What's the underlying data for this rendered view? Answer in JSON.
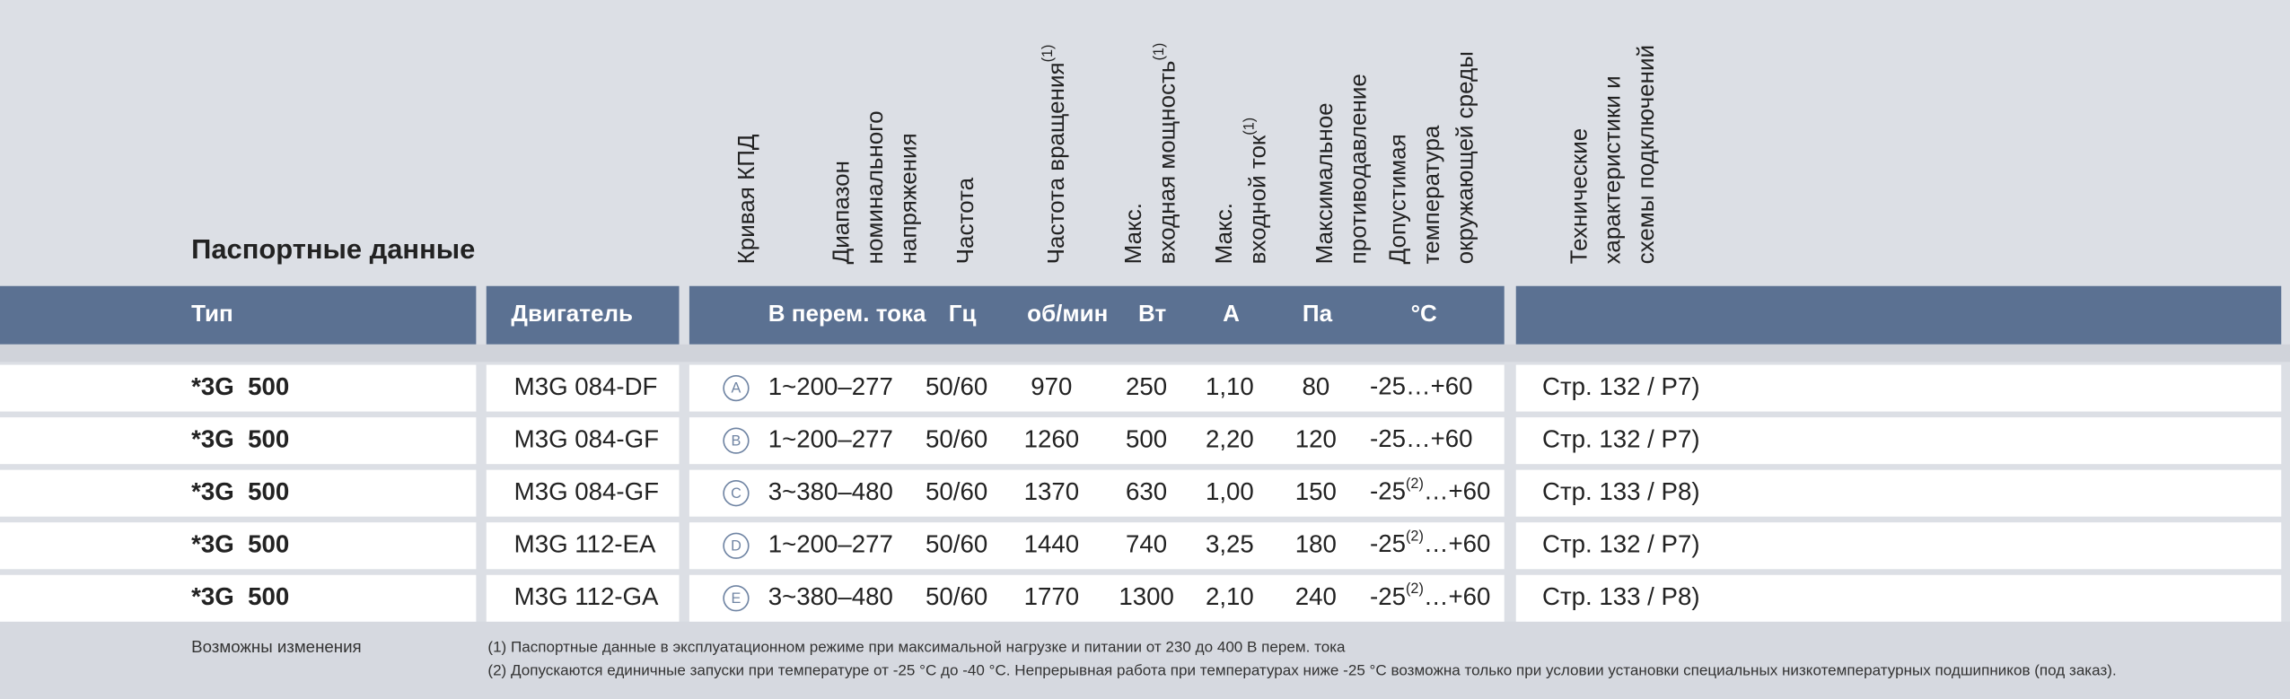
{
  "header": {
    "title": "Паспортные данные",
    "column_headers": [
      {
        "lines": [
          "Кривая КПД"
        ]
      },
      {
        "lines": [
          "Диапазон",
          "номинального",
          "напряжения"
        ]
      },
      {
        "lines": [
          "Частота"
        ]
      },
      {
        "lines": [
          "Частота вращения"
        ],
        "note": "(1)"
      },
      {
        "lines": [
          "Макс.",
          "входная мощность"
        ],
        "note": "(1)"
      },
      {
        "lines": [
          "Макс.",
          "входной ток"
        ],
        "note": "(1)"
      },
      {
        "lines": [
          "Максимальное",
          "противодавление"
        ]
      },
      {
        "lines": [
          "Допустимая",
          "температура",
          "окружающей среды"
        ]
      },
      {
        "lines": [
          "Технические",
          "характеристики и",
          "схемы подключений"
        ]
      }
    ]
  },
  "table": {
    "units": [
      "Тип",
      "Двигатель",
      "В перем. тока",
      "Гц",
      "об/мин",
      "Вт",
      "A",
      "Па",
      "°C"
    ],
    "rows": [
      {
        "type": "*3G  500",
        "motor": "M3G 084-DF",
        "curve": "A",
        "voltage": "1~200–277",
        "hz": "50/60",
        "rpm": "970",
        "power": "250",
        "current": "1,10",
        "pressure": "80",
        "temp_min": "-25",
        "temp_max": "…+60",
        "ref": "Стр. 132 / P7)"
      },
      {
        "type": "*3G  500",
        "motor": "M3G 084-GF",
        "curve": "B",
        "voltage": "1~200–277",
        "hz": "50/60",
        "rpm": "1260",
        "power": "500",
        "current": "2,20",
        "pressure": "120",
        "temp_min": "-25",
        "temp_max": "…+60",
        "ref": "Стр. 132 / P7)"
      },
      {
        "type": "*3G  500",
        "motor": "M3G 084-GF",
        "curve": "C",
        "voltage": "3~380–480",
        "hz": "50/60",
        "rpm": "1370",
        "power": "630",
        "current": "1,00",
        "pressure": "150",
        "temp_min": "-25",
        "temp_note": "(2)",
        "temp_max": "…+60",
        "ref": "Стр. 133 / P8)"
      },
      {
        "type": "*3G  500",
        "motor": "M3G 112-EA",
        "curve": "D",
        "voltage": "1~200–277",
        "hz": "50/60",
        "rpm": "1440",
        "power": "740",
        "current": "3,25",
        "pressure": "180",
        "temp_min": "-25",
        "temp_note": "(2)",
        "temp_max": "…+60",
        "ref": "Стр. 132 / P7)"
      },
      {
        "type": "*3G  500",
        "motor": "M3G 112-GA",
        "curve": "E",
        "voltage": "3~380–480",
        "hz": "50/60",
        "rpm": "1770",
        "power": "1300",
        "current": "2,10",
        "pressure": "240",
        "temp_min": "-25",
        "temp_note": "(2)",
        "temp_max": "…+60",
        "ref": "Стр. 133 / P8)"
      }
    ]
  },
  "footer": {
    "changes": "Возможны изменения",
    "notes": [
      "(1) Паспортные данные в эксплуатационном режиме при максимальной нагрузке и питании от 230 до 400 В перем. тока",
      "(2) Допускаются единичные запуски при температуре от -25 °C до -40 °C. Непрерывная работа при температурах ниже -25 °C возможна только при условии установки специальных низкотемпературных подшипников (под заказ)."
    ]
  }
}
